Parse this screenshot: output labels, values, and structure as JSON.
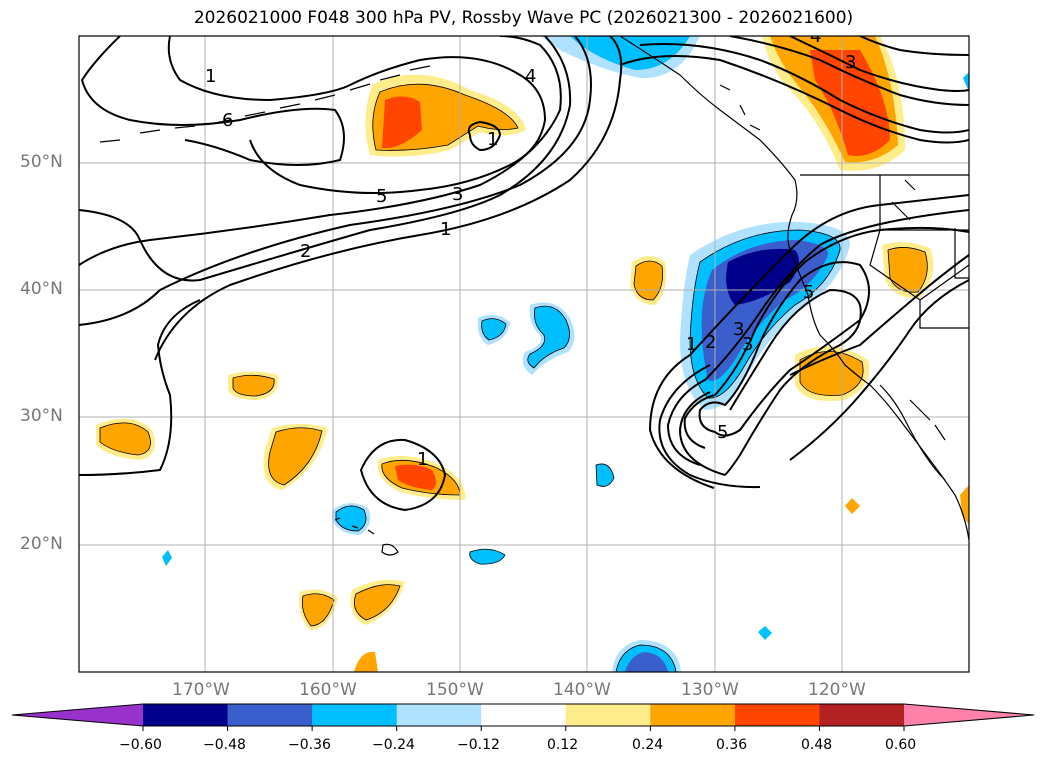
{
  "title": "2026021000 F048 300 hPa PV, Rossby Wave PC (2026021300 - 2026021600)",
  "axes": {
    "lat_labels": [
      "50°N",
      "40°N",
      "30°N",
      "20°N"
    ],
    "lon_labels": [
      "170°W",
      "160°W",
      "150°W",
      "140°W",
      "130°W",
      "120°W"
    ]
  },
  "contour_labels": [
    "1",
    "6",
    "4",
    "5",
    "3",
    "2",
    "1",
    "1",
    "3",
    "3",
    "2",
    "1",
    "5",
    "5",
    "1",
    "4",
    "3"
  ],
  "colorbar": {
    "ticks": [
      "−0.60",
      "−0.48",
      "−0.36",
      "−0.24",
      "−0.12",
      "0.12",
      "0.24",
      "0.36",
      "0.48",
      "0.60"
    ],
    "colors": [
      "#9932cc",
      "#00008b",
      "#3a5fcd",
      "#00bfff",
      "#b0e2ff",
      "#ffffff",
      "#ffec8b",
      "#ffa500",
      "#ff4500",
      "#b22222",
      "#ff82ab"
    ]
  }
}
